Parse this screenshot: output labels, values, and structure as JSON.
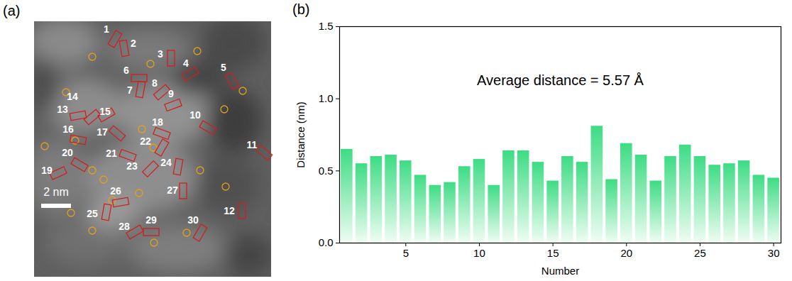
{
  "image_panel": {
    "panel_label": "(a)",
    "scale_bar": "2 nm",
    "marker_labels": [
      "1",
      "2",
      "3",
      "4",
      "5",
      "6",
      "7",
      "8",
      "9",
      "10",
      "11",
      "12",
      "13",
      "14",
      "15",
      "16",
      "17",
      "18",
      "19",
      "20",
      "21",
      "22",
      "23",
      "24",
      "25",
      "26",
      "27",
      "28",
      "29",
      "30"
    ]
  },
  "chart_data": {
    "type": "bar",
    "panel_label": "(b)",
    "annotation": "Average distance = 5.57 Å",
    "x_label": "Number",
    "y_label": "Distance (nm)",
    "x": [
      1,
      2,
      3,
      4,
      5,
      6,
      7,
      8,
      9,
      10,
      11,
      12,
      13,
      14,
      15,
      16,
      17,
      18,
      19,
      20,
      21,
      22,
      23,
      24,
      25,
      26,
      27,
      28,
      29,
      30
    ],
    "values": [
      0.65,
      0.55,
      0.6,
      0.61,
      0.57,
      0.47,
      0.4,
      0.42,
      0.53,
      0.58,
      0.4,
      0.64,
      0.64,
      0.56,
      0.43,
      0.6,
      0.56,
      0.81,
      0.44,
      0.69,
      0.61,
      0.43,
      0.6,
      0.68,
      0.6,
      0.54,
      0.55,
      0.57,
      0.47,
      0.45
    ],
    "color": "#3ddc84",
    "xlim": [
      0.5,
      30.5
    ],
    "xticks": [
      5,
      10,
      15,
      20,
      25,
      30
    ],
    "ylim": [
      0,
      1.5
    ],
    "yticks": [
      {
        "value": 0,
        "label": "0.0"
      },
      {
        "value": 0.5,
        "label": "0.5"
      },
      {
        "value": 1.0,
        "label": "1.0"
      },
      {
        "value": 1.5,
        "label": "1.5"
      }
    ],
    "grid": false
  }
}
